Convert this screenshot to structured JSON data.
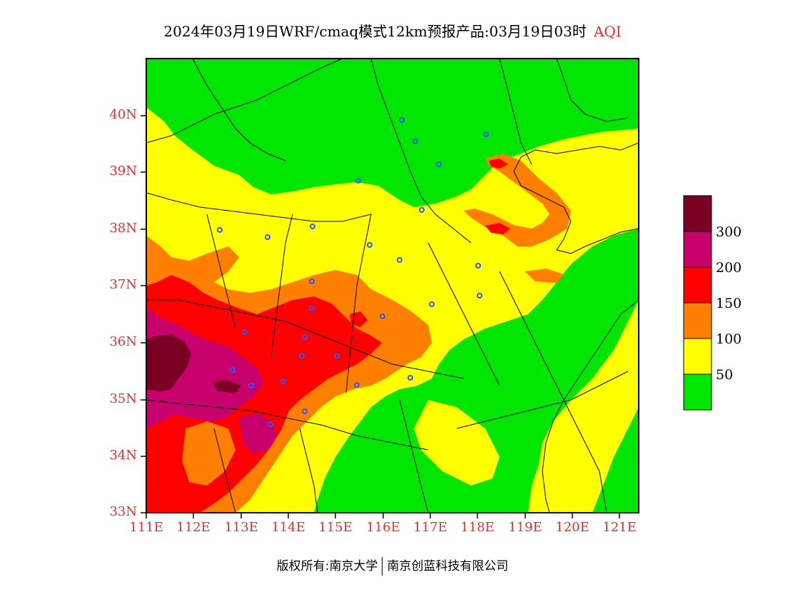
{
  "title": {
    "main": "2024年03月19日WRF/cmaq模式12km预报产品:03月19日03时",
    "variable": "AQI"
  },
  "axes": {
    "lat_labels": [
      "40N",
      "39N",
      "38N",
      "37N",
      "36N",
      "35N",
      "34N",
      "33N"
    ],
    "lon_labels": [
      "111E",
      "112E",
      "113E",
      "114E",
      "115E",
      "116E",
      "117E",
      "118E",
      "119E",
      "120E",
      "121E"
    ]
  },
  "legend": {
    "labels": [
      "300",
      "200",
      "150",
      "100",
      "50"
    ],
    "colors": [
      "#7a0024",
      "#c8006c",
      "#ff0000",
      "#ff8000",
      "#ffff00",
      "#00e600"
    ]
  },
  "footer": {
    "left": "版权所有:南京大学",
    "right": "南京创蓝科技有限公司"
  }
}
